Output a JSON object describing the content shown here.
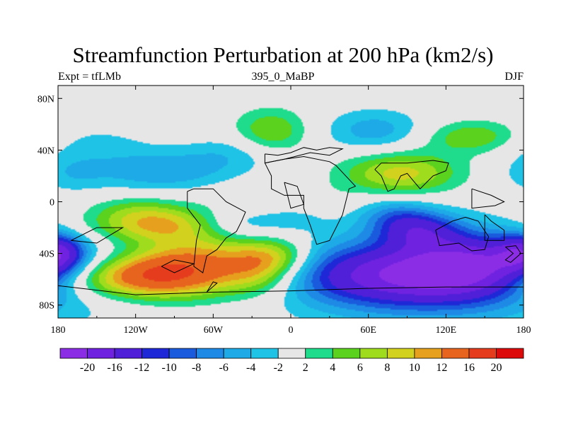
{
  "chart_data": {
    "type": "heatmap",
    "title": "Streamfunction Perturbation at 200 hPa (km2/s)",
    "left_label": "Expt = tfLMb",
    "center_label": "395_0_MaBP",
    "right_label": "DJF",
    "x_ticks": [
      "180",
      "120W",
      "60W",
      "0",
      "60E",
      "120E",
      "180"
    ],
    "x_tick_values": [
      -180,
      -120,
      -60,
      0,
      60,
      120,
      180
    ],
    "y_ticks": [
      "80N",
      "40N",
      "0",
      "40S",
      "80S"
    ],
    "y_tick_values": [
      80,
      40,
      0,
      -40,
      -80
    ],
    "xlim": [
      -180,
      180
    ],
    "ylim": [
      -90,
      90
    ],
    "colorbar_labels": [
      "-20",
      "-16",
      "-12",
      "-10",
      "-8",
      "-6",
      "-4",
      "-2",
      "2",
      "4",
      "6",
      "8",
      "10",
      "12",
      "16",
      "20"
    ],
    "levels": [
      -20,
      -16,
      -12,
      -10,
      -8,
      -6,
      -4,
      -2,
      2,
      4,
      6,
      8,
      10,
      12,
      16,
      20
    ],
    "colors": [
      "#8c2de6",
      "#6f22e0",
      "#5020d8",
      "#1e28d6",
      "#1a5adc",
      "#1e8ae6",
      "#1eaae6",
      "#1ec3e6",
      "#e6e6e6",
      "#1edc8c",
      "#5ad21e",
      "#a0dc1e",
      "#d2d21e",
      "#e6a01e",
      "#e6641e",
      "#e63c1e",
      "#dc0a0a"
    ],
    "contour_fields": [
      {
        "lon": 84,
        "lat": -57,
        "max": -13.5,
        "sx": 58,
        "sy": 16
      },
      {
        "lon": 142,
        "lat": -48,
        "max": -10.5,
        "sx": 36,
        "sy": 16
      },
      {
        "lon": 115,
        "lat": -58,
        "max": -7,
        "sx": 80,
        "sy": 28
      },
      {
        "lon": 100,
        "lat": -22,
        "max": -9.5,
        "sx": 22,
        "sy": 10
      },
      {
        "lon": 80,
        "lat": -10,
        "max": -5,
        "sx": 20,
        "sy": 10
      },
      {
        "lon": 65,
        "lat": 55,
        "max": -5.2,
        "sx": 28,
        "sy": 12
      },
      {
        "lon": -100,
        "lat": 24,
        "max": -5.8,
        "sx": 38,
        "sy": 11
      },
      {
        "lon": -160,
        "lat": 45,
        "max": -2.8,
        "sx": 35,
        "sy": 10
      },
      {
        "lon": -45,
        "lat": 38,
        "max": -3,
        "sx": 25,
        "sy": 10
      },
      {
        "lon": -45,
        "lat": -18,
        "max": -6,
        "sx": 25,
        "sy": 10
      },
      {
        "lon": 0,
        "lat": -10,
        "max": -3,
        "sx": 20,
        "sy": 8
      },
      {
        "lon": -180,
        "lat": -40,
        "max": -5.5,
        "sx": 14,
        "sy": 10
      },
      {
        "lon": 180,
        "lat": -40,
        "max": -5.5,
        "sx": 14,
        "sy": 10
      },
      {
        "lon": -170,
        "lat": 22,
        "max": -3,
        "sx": 20,
        "sy": 10
      },
      {
        "lon": -90,
        "lat": -54,
        "max": 15,
        "sx": 36,
        "sy": 14
      },
      {
        "lon": -140,
        "lat": -60,
        "max": 8.5,
        "sx": 38,
        "sy": 11
      },
      {
        "lon": -100,
        "lat": -18,
        "max": 10.5,
        "sx": 40,
        "sy": 10
      },
      {
        "lon": -25,
        "lat": -54,
        "max": 8.5,
        "sx": 22,
        "sy": 14
      },
      {
        "lon": -10,
        "lat": -42,
        "max": 6,
        "sx": 20,
        "sy": 10
      },
      {
        "lon": 85,
        "lat": 22,
        "max": 9,
        "sx": 32,
        "sy": 12
      },
      {
        "lon": -15,
        "lat": 55,
        "max": 6.2,
        "sx": 20,
        "sy": 12
      },
      {
        "lon": 142,
        "lat": 50,
        "max": 6.3,
        "sx": 27,
        "sy": 9
      },
      {
        "lon": -55,
        "lat": -35,
        "max": 4,
        "sx": 30,
        "sy": 12
      },
      {
        "lon": -10,
        "lat": 0,
        "max": 3,
        "sx": 35,
        "sy": 9
      },
      {
        "lon": -120,
        "lat": -5,
        "max": 3,
        "sx": 25,
        "sy": 8
      }
    ],
    "coastlines": [
      [
        [
          -20,
          37
        ],
        [
          -10,
          36
        ],
        [
          0,
          38
        ],
        [
          10,
          42
        ],
        [
          20,
          40
        ],
        [
          30,
          42
        ],
        [
          40,
          41
        ],
        [
          30,
          36
        ],
        [
          15,
          38
        ],
        [
          -5,
          33
        ],
        [
          -20,
          30
        ],
        [
          -20,
          37
        ]
      ],
      [
        [
          -20,
          30
        ],
        [
          -15,
          20
        ],
        [
          -15,
          10
        ],
        [
          -5,
          5
        ],
        [
          10,
          5
        ],
        [
          10,
          -5
        ],
        [
          15,
          -18
        ],
        [
          20,
          -33
        ],
        [
          30,
          -30
        ],
        [
          35,
          -20
        ],
        [
          40,
          -10
        ],
        [
          45,
          10
        ],
        [
          50,
          12
        ],
        [
          35,
          28
        ],
        [
          30,
          31
        ],
        [
          10,
          35
        ],
        [
          -5,
          33
        ],
        [
          -20,
          30
        ]
      ],
      [
        [
          -80,
          8
        ],
        [
          -75,
          10
        ],
        [
          -60,
          10
        ],
        [
          -50,
          0
        ],
        [
          -35,
          -8
        ],
        [
          -38,
          -15
        ],
        [
          -42,
          -23
        ],
        [
          -50,
          -28
        ],
        [
          -57,
          -37
        ],
        [
          -65,
          -42
        ],
        [
          -68,
          -55
        ],
        [
          -75,
          -50
        ],
        [
          -73,
          -30
        ],
        [
          -70,
          -18
        ],
        [
          -80,
          -5
        ],
        [
          -80,
          8
        ]
      ],
      [
        [
          112,
          -22
        ],
        [
          115,
          -34
        ],
        [
          130,
          -32
        ],
        [
          140,
          -38
        ],
        [
          150,
          -37
        ],
        [
          153,
          -27
        ],
        [
          145,
          -15
        ],
        [
          135,
          -12
        ],
        [
          125,
          -15
        ],
        [
          112,
          -22
        ]
      ],
      [
        [
          140,
          10
        ],
        [
          155,
          5
        ],
        [
          165,
          0
        ],
        [
          158,
          -3
        ],
        [
          140,
          -5
        ],
        [
          140,
          10
        ]
      ],
      [
        [
          150,
          -10
        ],
        [
          155,
          -15
        ],
        [
          165,
          -22
        ],
        [
          165,
          -30
        ],
        [
          150,
          -30
        ],
        [
          150,
          -10
        ]
      ],
      [
        [
          166,
          -35
        ],
        [
          174,
          -34
        ],
        [
          178,
          -40
        ],
        [
          170,
          -47
        ],
        [
          166,
          -45
        ],
        [
          172,
          -40
        ],
        [
          166,
          -35
        ]
      ],
      [
        [
          -180,
          -65
        ],
        [
          -120,
          -72
        ],
        [
          -60,
          -70
        ],
        [
          0,
          -69
        ],
        [
          60,
          -67
        ],
        [
          120,
          -66
        ],
        [
          180,
          -66
        ]
      ],
      [
        [
          -65,
          -70
        ],
        [
          -60,
          -62
        ],
        [
          -57,
          -63
        ],
        [
          -65,
          -70
        ]
      ],
      [
        [
          -170,
          -30
        ],
        [
          -150,
          -20
        ],
        [
          -130,
          -20
        ],
        [
          -150,
          -32
        ],
        [
          -170,
          -30
        ]
      ],
      [
        [
          -100,
          -50
        ],
        [
          -90,
          -45
        ],
        [
          -75,
          -48
        ],
        [
          -90,
          -55
        ],
        [
          -100,
          -50
        ]
      ],
      [
        [
          65,
          25
        ],
        [
          70,
          20
        ],
        [
          75,
          8
        ],
        [
          80,
          10
        ],
        [
          85,
          20
        ],
        [
          90,
          22
        ],
        [
          95,
          16
        ],
        [
          100,
          10
        ],
        [
          110,
          20
        ],
        [
          120,
          24
        ],
        [
          122,
          30
        ],
        [
          110,
          32
        ],
        [
          90,
          30
        ],
        [
          70,
          30
        ],
        [
          65,
          25
        ]
      ],
      [
        [
          -5,
          15
        ],
        [
          5,
          12
        ],
        [
          10,
          -2
        ],
        [
          0,
          -5
        ],
        [
          -5,
          15
        ]
      ]
    ]
  }
}
